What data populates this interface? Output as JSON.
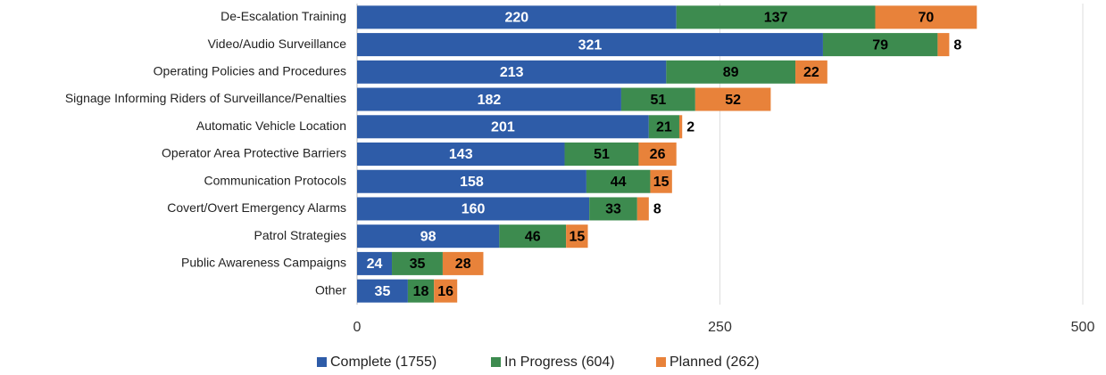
{
  "chart_data": {
    "type": "stacked_barh",
    "categories": [
      "De-Escalation Training",
      "Video/Audio Surveillance",
      "Operating Policies and Procedures",
      "Signage Informing Riders of Surveillance/Penalties",
      "Automatic Vehicle Location",
      "Operator Area Protective Barriers",
      "Communication Protocols",
      "Covert/Overt Emergency Alarms",
      "Patrol Strategies",
      "Public Awareness Campaigns",
      "Other"
    ],
    "series": [
      {
        "name": "Complete (1755)",
        "color": "#2e5ca8",
        "values": [
          220,
          321,
          213,
          182,
          201,
          143,
          158,
          160,
          98,
          24,
          35
        ]
      },
      {
        "name": "In Progress (604)",
        "color": "#3d8b4f",
        "values": [
          137,
          79,
          89,
          51,
          21,
          51,
          44,
          33,
          46,
          35,
          18
        ]
      },
      {
        "name": "Planned (262)",
        "color": "#e8823a",
        "values": [
          70,
          8,
          22,
          52,
          2,
          26,
          15,
          8,
          15,
          28,
          16
        ]
      }
    ],
    "xlim": [
      0,
      500
    ],
    "xticks": [
      0,
      250,
      500
    ],
    "grid": true,
    "legend": "bottom"
  }
}
